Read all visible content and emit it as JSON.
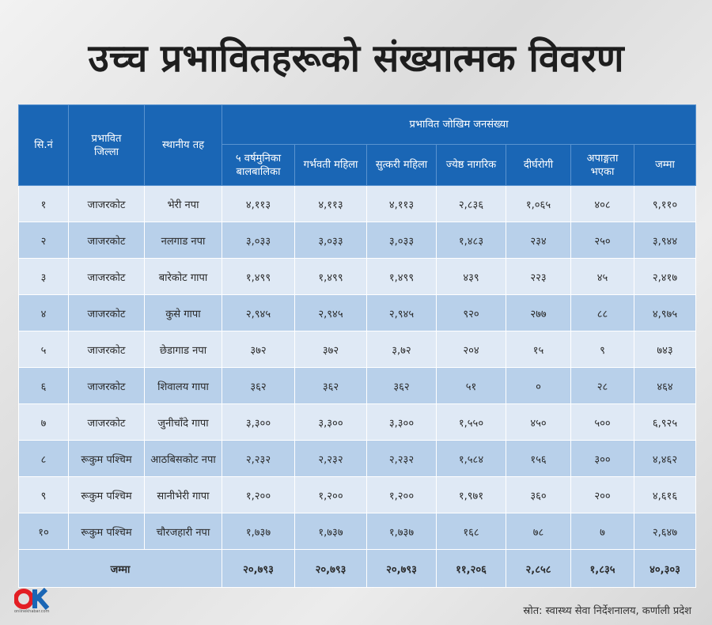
{
  "title": "उच्च प्रभावितहरूको संख्यात्मक विवरण",
  "headers": {
    "sn": "सि.नं",
    "district": "प्रभावित जिल्ला",
    "local": "स्थानीय तह",
    "group": "प्रभावित जोखिम जनसंख्या",
    "cols": [
      "५ वर्षमुनिका बालबालिका",
      "गर्भवती महिला",
      "सुत्करी महिला",
      "ज्येष्ठ नागरिक",
      "दीर्घरोगी",
      "अपाङ्गता भएका",
      "जम्मा"
    ]
  },
  "rows": [
    {
      "sn": "१",
      "district": "जाजरकोट",
      "local": "भेरी नपा",
      "v": [
        "४,११३",
        "४,११३",
        "४,११३",
        "२,८३६",
        "१,०६५",
        "४०८",
        "९,११०"
      ]
    },
    {
      "sn": "२",
      "district": "जाजरकोट",
      "local": "नलगाड नपा",
      "v": [
        "३,०३३",
        "३,०३३",
        "३,०३३",
        "१,४८३",
        "२३४",
        "२५०",
        "३,९४४"
      ]
    },
    {
      "sn": "३",
      "district": "जाजरकोट",
      "local": "बारेकोट गापा",
      "v": [
        "१,४९९",
        "१,४९९",
        "१,४९९",
        "४३९",
        "२२३",
        "४५",
        "२,४१७"
      ]
    },
    {
      "sn": "४",
      "district": "जाजरकोट",
      "local": "कुसे गापा",
      "v": [
        "२,९४५",
        "२,९४५",
        "२,९४५",
        "९२०",
        "२७७",
        "८८",
        "४,९७५"
      ]
    },
    {
      "sn": "५",
      "district": "जाजरकोट",
      "local": "छेडागाड नपा",
      "v": [
        "३७२",
        "३७२",
        "३,७२",
        "२०४",
        "१५",
        "९",
        "७४३"
      ]
    },
    {
      "sn": "६",
      "district": "जाजरकोट",
      "local": "शिवालय गापा",
      "v": [
        "३६२",
        "३६२",
        "३६२",
        "५१",
        "०",
        "२८",
        "४६४"
      ]
    },
    {
      "sn": "७",
      "district": "जाजरकोट",
      "local": "जुनीचाँदे गापा",
      "v": [
        "३,३००",
        "३,३००",
        "३,३००",
        "१,५५०",
        "४५०",
        "५००",
        "६,९२५"
      ]
    },
    {
      "sn": "८",
      "district": "रूकुम पश्चिम",
      "local": "आठबिसकोट नपा",
      "v": [
        "२,२३२",
        "२,२३२",
        "२,२३२",
        "१,५८४",
        "१५६",
        "३००",
        "४,४६२"
      ]
    },
    {
      "sn": "९",
      "district": "रूकुम पश्चिम",
      "local": "सानीभेरी गापा",
      "v": [
        "१,२००",
        "१,२००",
        "१,२००",
        "१,९७१",
        "३६०",
        "२००",
        "४,६१६"
      ]
    },
    {
      "sn": "१०",
      "district": "रूकुम पश्चिम",
      "local": "चौरजहारी नपा",
      "v": [
        "१,७३७",
        "१,७३७",
        "१,७३७",
        "१६८",
        "७८",
        "७",
        "२,६४७"
      ]
    }
  ],
  "total": {
    "label": "जम्मा",
    "v": [
      "२०,७९३",
      "२०,७९३",
      "२०,७९३",
      "११,२०६",
      "२,८५८",
      "१,८३५",
      "४०,३०३"
    ]
  },
  "logo": {
    "mark": "OK",
    "sub": "onlinekhabar.com",
    "colors": {
      "o": "#e31e24",
      "k": "#1a66b5"
    }
  },
  "source": "स्रोत: स्वास्थ्य सेवा निर्देशनालय, कर्णाली प्रदेश"
}
